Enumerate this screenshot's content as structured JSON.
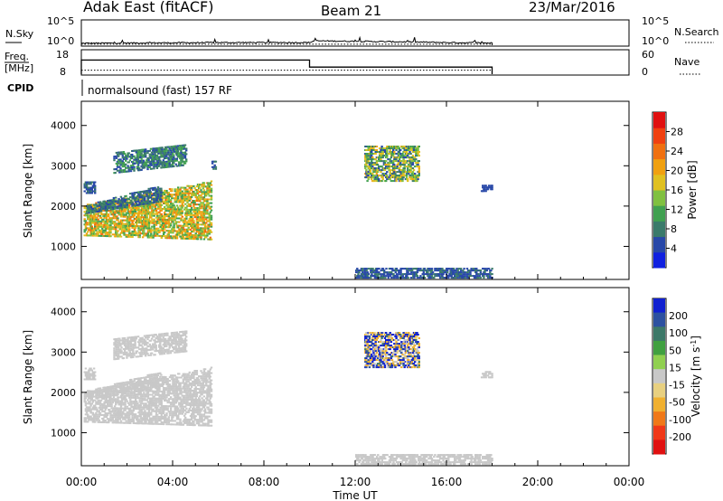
{
  "header": {
    "station": "Adak East (fitACF)",
    "beam": "Beam 21",
    "date": "23/Mar/2016"
  },
  "noise_panel": {
    "left_label": "N.Sky",
    "right_label": "N.Search",
    "tick_top": "10^5",
    "tick_bottom": "10^0"
  },
  "freq_panel": {
    "left_label_1": "Freq.",
    "left_label_2": "[MHz]",
    "right_label": "Nave",
    "left_ticks": [
      "18",
      "8"
    ],
    "right_ticks": [
      "60",
      "0"
    ]
  },
  "cpid": {
    "label": "CPID",
    "program": "normalsound (fast) 157 RF"
  },
  "x_axis": {
    "label": "Time UT",
    "ticks": [
      "00:00",
      "04:00",
      "08:00",
      "12:00",
      "16:00",
      "20:00",
      "00:00"
    ]
  },
  "colors": {
    "power": [
      "#1020e0",
      "#2848a8",
      "#3a7a6a",
      "#40a050",
      "#80c040",
      "#e0c020",
      "#f0a010",
      "#f07010",
      "#f04010",
      "#e01010"
    ],
    "velocity": [
      "#1020d0",
      "#2c50a0",
      "#3c7868",
      "#40a040",
      "#90d050",
      "#c8c8c8",
      "#e8d080",
      "#f0b030",
      "#f07818",
      "#f03818",
      "#e01010"
    ]
  },
  "chart_data": [
    {
      "type": "line",
      "title": "",
      "xlabel": "",
      "ylabel": "N.Sky",
      "x_range_hours": [
        0,
        24
      ],
      "ylim_log10": [
        0,
        5
      ],
      "series": [
        {
          "name": "N.Sky",
          "x": [
            0,
            2,
            4,
            6,
            8,
            10,
            10.2,
            12,
            14,
            16,
            18
          ],
          "y_log10": [
            0.4,
            0.45,
            0.5,
            0.55,
            0.55,
            0.55,
            0.9,
            0.8,
            0.7,
            0.55,
            0.45
          ]
        },
        {
          "name": "N.Search",
          "x": [
            0,
            18
          ],
          "y_log10": [
            0.2,
            0.2
          ]
        }
      ]
    },
    {
      "type": "line",
      "title": "",
      "xlabel": "",
      "ylabel": "Freq. [MHz]",
      "x_range_hours": [
        0,
        24
      ],
      "ylim": [
        8,
        18
      ],
      "series": [
        {
          "name": "Freq.",
          "x": [
            0,
            10,
            10,
            18
          ],
          "y": [
            14,
            14,
            11,
            11
          ]
        },
        {
          "name": "Nave",
          "x": [
            0,
            18
          ],
          "y_right": [
            10,
            10
          ],
          "y_right_lim": [
            0,
            60
          ]
        }
      ]
    },
    {
      "type": "heatmap",
      "title": "",
      "xlabel": "",
      "ylabel": "Slant Range [km]",
      "colorbar_label": "Power [dB]",
      "x_range_hours": [
        0,
        24
      ],
      "ylim": [
        180,
        4600
      ],
      "yticks": [
        1000,
        2000,
        3000,
        4000
      ],
      "colorbar_ticks": [
        4,
        8,
        12,
        16,
        20,
        24,
        28
      ],
      "colorbar_range": [
        0,
        32
      ],
      "regions": [
        {
          "t": [
            0.1,
            5.7
          ],
          "r0": [
            1250,
            1150
          ],
          "r1": [
            2000,
            2600
          ],
          "v": [
            10,
            24
          ]
        },
        {
          "t": [
            0.2,
            3.5
          ],
          "r0": [
            1800,
            2100
          ],
          "r1": [
            2000,
            2500
          ],
          "v": [
            4,
            10
          ]
        },
        {
          "t": [
            0.1,
            0.6
          ],
          "r0": [
            2300,
            2300
          ],
          "r1": [
            2600,
            2600
          ],
          "v": [
            4,
            8
          ]
        },
        {
          "t": [
            1.4,
            4.6
          ],
          "r0": [
            2800,
            3000
          ],
          "r1": [
            3300,
            3500
          ],
          "v": [
            4,
            12
          ]
        },
        {
          "t": [
            5.7,
            5.9
          ],
          "r0": [
            2900,
            2900
          ],
          "r1": [
            3100,
            3100
          ],
          "v": [
            4,
            8
          ]
        },
        {
          "t": [
            12.4,
            14.8
          ],
          "r0": [
            2600,
            2600
          ],
          "r1": [
            3500,
            3500
          ],
          "v": [
            4,
            20
          ]
        },
        {
          "t": [
            17.5,
            18.0
          ],
          "r0": [
            2350,
            2350
          ],
          "r1": [
            2500,
            2500
          ],
          "v": [
            4,
            6
          ]
        },
        {
          "t": [
            12.0,
            18.0
          ],
          "r0": [
            200,
            200
          ],
          "r1": [
            450,
            450
          ],
          "v": [
            4,
            8
          ]
        }
      ]
    },
    {
      "type": "heatmap",
      "title": "",
      "xlabel": "Time UT",
      "ylabel": "Slant Range [km]",
      "colorbar_label": "Velocity [m s^-1]",
      "x_range_hours": [
        0,
        24
      ],
      "ylim": [
        180,
        4600
      ],
      "yticks": [
        1000,
        2000,
        3000,
        4000
      ],
      "colorbar_ticks": [
        200,
        100,
        50,
        15,
        -15,
        -50,
        -100,
        -200
      ],
      "regions": [
        {
          "t": [
            0.1,
            5.7
          ],
          "r0": [
            1250,
            1150
          ],
          "r1": [
            2000,
            2600
          ],
          "v": [
            -15,
            15
          ]
        },
        {
          "t": [
            0.2,
            3.5
          ],
          "r0": [
            1800,
            2100
          ],
          "r1": [
            2000,
            2500
          ],
          "v": [
            -50,
            15
          ]
        },
        {
          "t": [
            0.1,
            0.6
          ],
          "r0": [
            2300,
            2300
          ],
          "r1": [
            2600,
            2600
          ],
          "v": [
            -50,
            15
          ]
        },
        {
          "t": [
            1.4,
            4.6
          ],
          "r0": [
            2800,
            3000
          ],
          "r1": [
            3300,
            3500
          ],
          "v": [
            -50,
            15
          ]
        },
        {
          "t": [
            12.4,
            14.8
          ],
          "r0": [
            2600,
            2600
          ],
          "r1": [
            3500,
            3500
          ],
          "v": [
            -200,
            200
          ]
        },
        {
          "t": [
            17.5,
            18.0
          ],
          "r0": [
            2350,
            2350
          ],
          "r1": [
            2500,
            2500
          ],
          "v": [
            -50,
            15
          ]
        },
        {
          "t": [
            12.0,
            18.0
          ],
          "r0": [
            200,
            200
          ],
          "r1": [
            450,
            450
          ],
          "v": [
            -50,
            15
          ]
        }
      ]
    }
  ]
}
